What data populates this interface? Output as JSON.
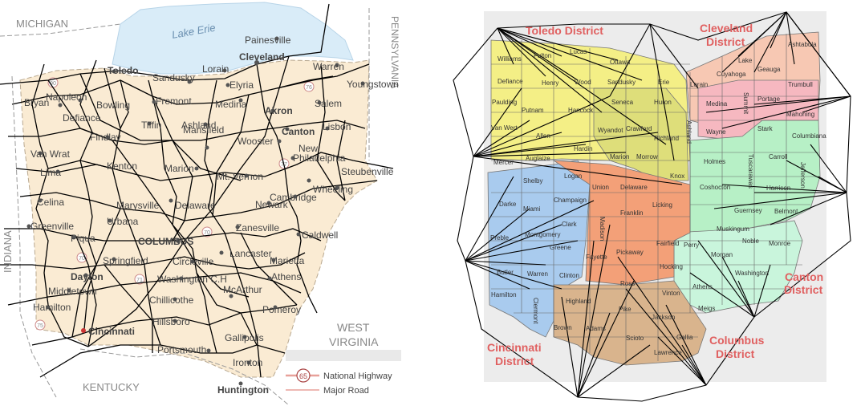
{
  "left_map": {
    "states": {
      "michigan": "MICHIGAN",
      "pennsylvania": "PENNSYLVANIA",
      "indiana": "INDIANA",
      "kentucky": "KENTUCKY",
      "west_virginia_1": "WEST",
      "west_virginia_2": "VIRGINIA"
    },
    "lake": "Lake Erie",
    "cities": [
      "Toledo",
      "Painesville",
      "Cleveland",
      "Sandusky",
      "Lorain",
      "Elyria",
      "Warren",
      "Youngstown",
      "Bryan",
      "Napoleon",
      "Bowling",
      "Fremont",
      "Medina",
      "Akron",
      "Salem",
      "Defiance",
      "Tiffin",
      "Ashland",
      "Canton",
      "Lisbon",
      "Findlay",
      "Wooster",
      "New",
      "Philadelphia",
      "Van Wrat",
      "Mansfield",
      "Steubenville",
      "Lima",
      "Kenton",
      "Marion",
      "Mt. Vernon",
      "Wheeling",
      "Celina",
      "Marysville",
      "Delaware",
      "Newark",
      "Cambridge",
      "Greenville",
      "Urbana",
      "Zanesville",
      "Caldwell",
      "Piqua",
      "COLUMBUS",
      "Springfield",
      "Lancaster",
      "Marietta",
      "Dayton",
      "Circleville",
      "Athens",
      "Middletown",
      "Washington C.H",
      "McArthur",
      "Hamilton",
      "Chillicothe",
      "Pomeroy",
      "Cincinnati",
      "Hillsboro",
      "Gallipolis",
      "Portsmouth",
      "Ironton",
      "Huntington"
    ],
    "route_shields": [
      "90",
      "76",
      "77",
      "70",
      "70",
      "71",
      "75"
    ],
    "legend": {
      "shield": "65",
      "national_highway": "National Highway",
      "major_road": "Major Road"
    }
  },
  "right_map": {
    "districts": [
      "Toledo District",
      "Cleveland",
      "District",
      "Cincinnati",
      "District",
      "Columbus",
      "District",
      "Canton",
      "District"
    ],
    "counties": [
      "Williams",
      "Fulton",
      "Lucas",
      "Ottawa",
      "Defiance",
      "Henry",
      "Wood",
      "Sandusky",
      "Erie",
      "Lorain",
      "Cuyahoga",
      "Lake",
      "Geauga",
      "Ashtabula",
      "Trumbull",
      "Portage",
      "Summit",
      "Medina",
      "Mahoning",
      "Paulding",
      "Putnam",
      "Hancock",
      "Seneca",
      "Huron",
      "Ashland",
      "Wayne",
      "Stark",
      "Columbiana",
      "Van Wert",
      "Allen",
      "Hardin",
      "Wyandot",
      "Crawford",
      "Richland",
      "Marion",
      "Morrow",
      "Knox",
      "Holmes",
      "Tuscarawas",
      "Carroll",
      "Jefferson",
      "Mercer",
      "Auglaize",
      "Logan",
      "Union",
      "Delaware",
      "Coshocton",
      "Harrison",
      "Shelby",
      "Champaign",
      "Licking",
      "Guernsey",
      "Belmont",
      "Darke",
      "Miami",
      "Clark",
      "Madison",
      "Franklin",
      "Muskingum",
      "Noble",
      "Monroe",
      "Preble",
      "Montgomery",
      "Greene",
      "Fayette",
      "Pickaway",
      "Fairfield",
      "Perry",
      "Morgan",
      "Washington",
      "Butler",
      "Warren",
      "Clinton",
      "Ross",
      "Hocking",
      "Athens",
      "Hamilton",
      "Clermont",
      "Highland",
      "Pike",
      "Vinton",
      "Meigs",
      "Brown",
      "Adams",
      "Scioto",
      "Jackson",
      "Gallia",
      "Lawrence"
    ]
  },
  "colors": {
    "ohio_fill": "#faebd3",
    "lake_fill": "#d9ecf8",
    "grid_bg": "#ececec",
    "toledo": "#f4ef86",
    "toledo_alt": "#dede7a",
    "cleveland": "#f7c8b3",
    "cleveland_pink": "#f6b8c0",
    "canton": "#b7f0c6",
    "canton_alt": "#c9f5dc",
    "cincinnati": "#a9cbee",
    "cincinnati_alt": "#9ec0e6",
    "columbus_orange": "#f3a078",
    "columbus_tan": "#d9b48d",
    "district_label": "#e06060",
    "road_red": "#e8a19a"
  }
}
